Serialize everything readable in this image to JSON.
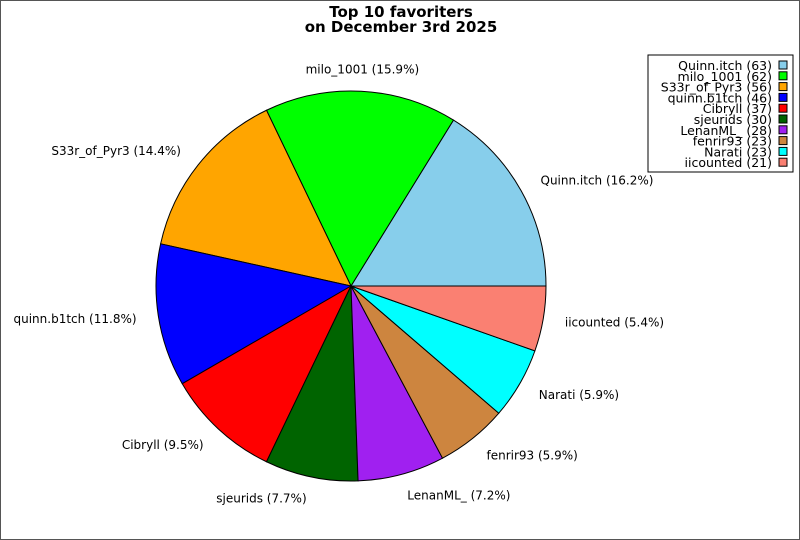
{
  "chart_data": {
    "type": "pie",
    "title_line1": "Top 10 favoriters",
    "title_line2": "on December 3rd 2025",
    "legend_placement": "top-right",
    "start_angle_deg": 0,
    "direction": "counterclockwise",
    "slices": [
      {
        "name": "Quinn.itch",
        "value": 63,
        "label": "Quinn.itch (16.2%)",
        "legend": "Quinn.itch (63)",
        "color": "#87CEEB"
      },
      {
        "name": "milo_1001",
        "value": 62,
        "label": "milo_1001 (15.9%)",
        "legend": "milo_1001 (62)",
        "color": "#00FF00"
      },
      {
        "name": "S33r_of_Pyr3",
        "value": 56,
        "label": "S33r_of_Pyr3 (14.4%)",
        "legend": "S33r_of_Pyr3 (56)",
        "color": "#FFA500"
      },
      {
        "name": "quinn.b1tch",
        "value": 46,
        "label": "quinn.b1tch (11.8%)",
        "legend": "quinn.b1tch (46)",
        "color": "#0000FF"
      },
      {
        "name": "Cibryll",
        "value": 37,
        "label": "Cibryll (9.5%)",
        "legend": "Cibryll (37)",
        "color": "#FF0000"
      },
      {
        "name": "sjeurids",
        "value": 30,
        "label": "sjeurids (7.7%)",
        "legend": "sjeurids (30)",
        "color": "#006400"
      },
      {
        "name": "LenanML_",
        "value": 28,
        "label": "LenanML_ (7.2%)",
        "legend": "LenanML_ (28)",
        "color": "#A020F0"
      },
      {
        "name": "fenrir93",
        "value": 23,
        "label": "fenrir93 (5.9%)",
        "legend": "fenrir93 (23)",
        "color": "#CD853F"
      },
      {
        "name": "Narati",
        "value": 23,
        "label": "Narati (5.9%)",
        "legend": "Narati (23)",
        "color": "#00FFFF"
      },
      {
        "name": "iicounted",
        "value": 21,
        "label": "iicounted (5.4%)",
        "legend": "iicounted (21)",
        "color": "#FA8072"
      }
    ]
  }
}
